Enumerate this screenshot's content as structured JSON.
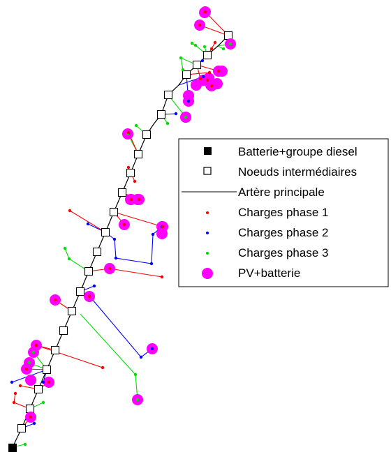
{
  "colors": {
    "background": "#ffffff",
    "artery": "#000000",
    "phase1": "#ff0000",
    "phase2": "#0000ff",
    "phase3": "#00dd00",
    "pv": "#ff00ff"
  },
  "legend": {
    "items": [
      {
        "key": "battery",
        "label": "Batterie+groupe diesel",
        "marker": "filled-square"
      },
      {
        "key": "node",
        "label": "Noeuds intermédiaires",
        "marker": "hollow-square"
      },
      {
        "key": "artery",
        "label": "Artère principale",
        "marker": "line"
      },
      {
        "key": "phase1",
        "label": "Charges phase 1",
        "marker": "small-dot-red"
      },
      {
        "key": "phase2",
        "label": "Charges phase 2",
        "marker": "small-dot-blue"
      },
      {
        "key": "phase3",
        "label": "Charges phase 3",
        "marker": "small-dot-green"
      },
      {
        "key": "pv",
        "label": "PV+batterie",
        "marker": "large-dot-magenta"
      }
    ]
  }
}
